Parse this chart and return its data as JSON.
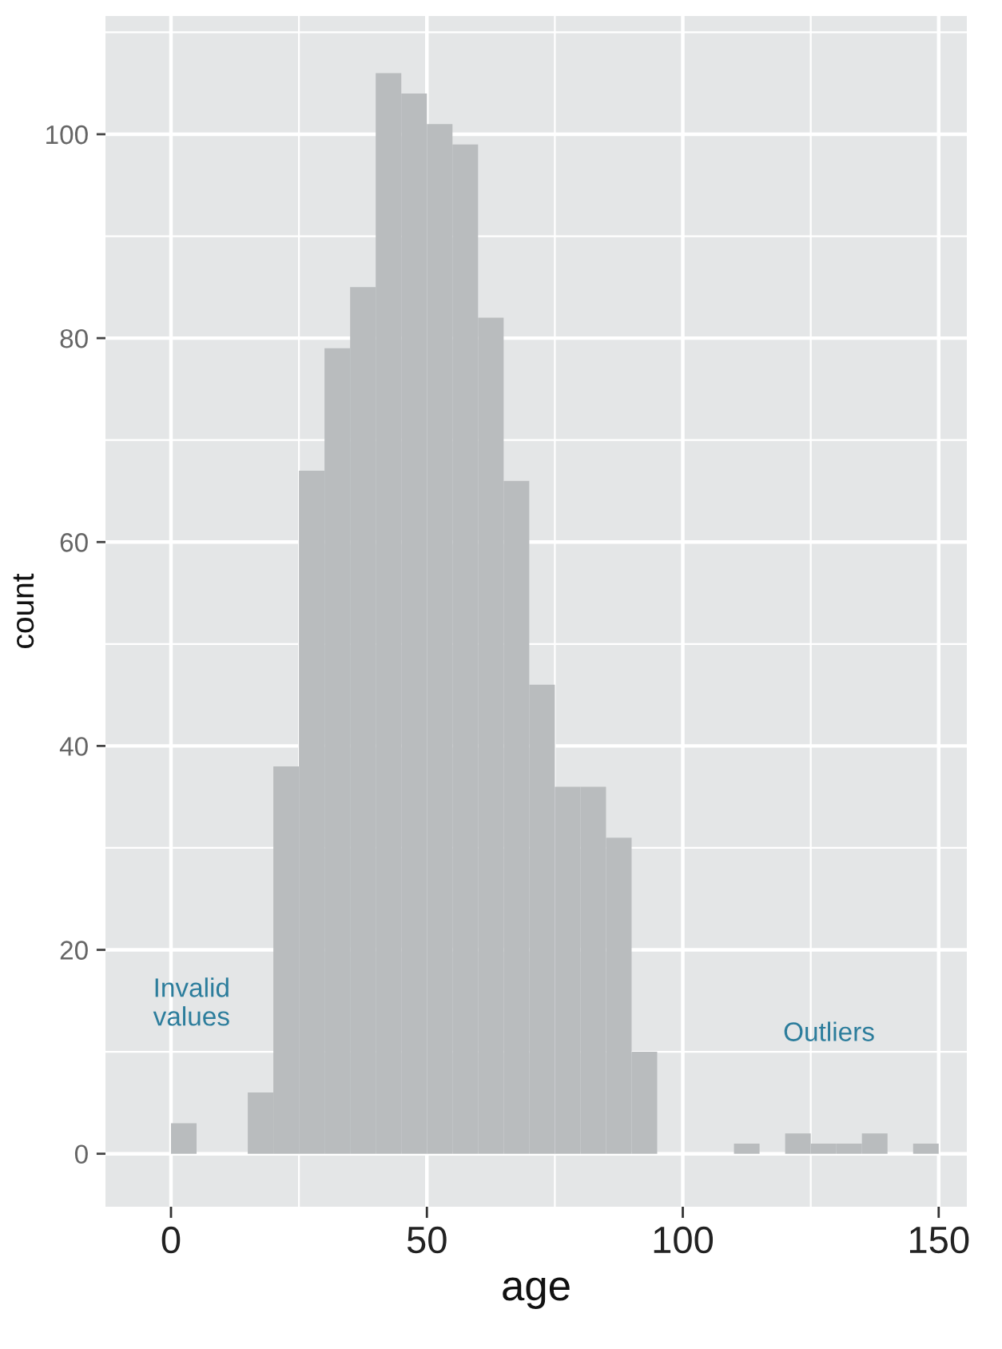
{
  "chart_data": {
    "type": "histogram",
    "xlabel": "age",
    "ylabel": "count",
    "bins": [
      0,
      5,
      10,
      15,
      20,
      25,
      30,
      35,
      40,
      45,
      50,
      55,
      60,
      65,
      70,
      75,
      80,
      85,
      90,
      95,
      100,
      105,
      110,
      115,
      120,
      125,
      130,
      135,
      140,
      145,
      150
    ],
    "values": [
      3,
      0,
      0,
      6,
      38,
      67,
      79,
      85,
      106,
      104,
      101,
      99,
      82,
      66,
      46,
      36,
      36,
      31,
      10,
      0,
      0,
      0,
      1,
      0,
      2,
      1,
      1,
      2,
      0,
      1
    ],
    "color": "#b9bcbe",
    "xlim": [
      -12.8,
      155.5
    ],
    "ylim": [
      -5.2,
      111.6
    ],
    "xticks": [
      0,
      50,
      100,
      150
    ],
    "yticks": [
      0,
      20,
      40,
      60,
      80,
      100
    ],
    "grid": true,
    "annotations": [
      "Invalid\nvalues",
      "Outliers"
    ]
  }
}
